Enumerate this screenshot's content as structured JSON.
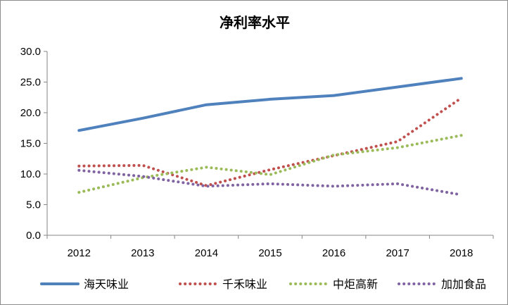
{
  "chart_data": {
    "type": "line",
    "title": "净利率水平",
    "xlabel": "",
    "ylabel": "",
    "x": [
      "2012",
      "2013",
      "2014",
      "2015",
      "2016",
      "2017",
      "2018"
    ],
    "ylim": [
      0,
      30
    ],
    "yticks": [
      "0.0",
      "5.0",
      "10.0",
      "15.0",
      "20.0",
      "25.0",
      "30.0"
    ],
    "grid": false,
    "legend_position": "bottom",
    "series": [
      {
        "name": "海天味业",
        "color": "#4f81bd",
        "style": "solid",
        "values": [
          17.1,
          19.1,
          21.3,
          22.2,
          22.8,
          24.2,
          25.6
        ]
      },
      {
        "name": "千禾味业",
        "color": "#c0504d",
        "style": "dotted",
        "values": [
          11.3,
          11.4,
          8.1,
          10.7,
          13.0,
          15.3,
          22.4
        ]
      },
      {
        "name": "中炬高新",
        "color": "#9bbb59",
        "style": "dotted",
        "values": [
          7.0,
          9.4,
          11.1,
          9.9,
          13.1,
          14.3,
          16.3
        ]
      },
      {
        "name": "加加食品",
        "color": "#8064a2",
        "style": "dotted",
        "values": [
          10.6,
          9.6,
          8.0,
          8.4,
          8.0,
          8.4,
          6.6
        ]
      }
    ]
  }
}
